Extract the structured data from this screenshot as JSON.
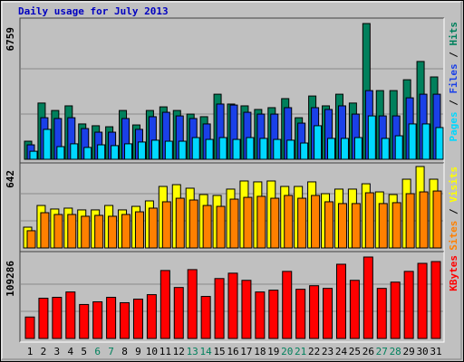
{
  "chart_data": [
    {
      "type": "bar",
      "title": "Daily usage for July 2013",
      "legend_separator": "/",
      "ylim": [
        0,
        6759
      ],
      "yticks": [
        6759
      ],
      "series": [
        {
          "name": "Hits",
          "color": "#00805c",
          "values": [
            900,
            2800,
            2430,
            2660,
            1760,
            1670,
            1620,
            2430,
            1710,
            2430,
            2610,
            2430,
            2250,
            2120,
            3240,
            2750,
            2660,
            2480,
            2570,
            3020,
            2070,
            3150,
            2660,
            3240,
            2800,
            6759,
            3420,
            3420,
            3960,
            4870,
            4100
          ]
        },
        {
          "name": "Files",
          "color": "#1a40e8",
          "values": [
            720,
            2070,
            2030,
            2070,
            1530,
            1350,
            1350,
            2030,
            1490,
            2120,
            2340,
            2160,
            2030,
            1760,
            2750,
            2700,
            2340,
            2250,
            2250,
            2570,
            1800,
            2570,
            2480,
            2660,
            2250,
            3420,
            2160,
            2160,
            3060,
            3240,
            3240
          ]
        },
        {
          "name": "Pages",
          "color": "#00d8ff",
          "values": [
            400,
            1490,
            630,
            770,
            590,
            720,
            680,
            770,
            860,
            950,
            900,
            900,
            1080,
            990,
            1080,
            990,
            1080,
            1040,
            990,
            950,
            810,
            1670,
            1040,
            1040,
            1080,
            2160,
            1040,
            1170,
            1760,
            1760,
            1580
          ]
        }
      ]
    },
    {
      "type": "bar",
      "ylim": [
        0,
        642
      ],
      "yticks": [
        642
      ],
      "series": [
        {
          "name": "Visits",
          "color": "#ffff00",
          "values": [
            164,
            335,
            307,
            314,
            300,
            300,
            335,
            300,
            328,
            371,
            485,
            499,
            471,
            421,
            414,
            464,
            528,
            521,
            528,
            485,
            485,
            521,
            428,
            464,
            464,
            506,
            442,
            421,
            542,
            642,
            542
          ]
        },
        {
          "name": "Sites",
          "color": "#ff8000",
          "values": [
            136,
            278,
            264,
            264,
            250,
            257,
            250,
            264,
            285,
            314,
            364,
            392,
            378,
            335,
            328,
            385,
            399,
            407,
            392,
            414,
            392,
            414,
            364,
            350,
            350,
            435,
            350,
            357,
            428,
            442,
            449
          ]
        }
      ]
    },
    {
      "type": "bar",
      "ylim": [
        0,
        109286
      ],
      "yticks": [
        109286
      ],
      "categories": [
        "1",
        "2",
        "3",
        "4",
        "5",
        "6",
        "7",
        "8",
        "9",
        "10",
        "11",
        "12",
        "13",
        "14",
        "15",
        "16",
        "17",
        "18",
        "19",
        "20",
        "21",
        "22",
        "23",
        "24",
        "25",
        "26",
        "27",
        "28",
        "29",
        "30",
        "31"
      ],
      "label_colors": [
        "#000000",
        "#000000",
        "#000000",
        "#000000",
        "#000000",
        "#00805c",
        "#00805c",
        "#000000",
        "#000000",
        "#000000",
        "#000000",
        "#000000",
        "#00805c",
        "#00805c",
        "#000000",
        "#000000",
        "#000000",
        "#000000",
        "#000000",
        "#00805c",
        "#00805c",
        "#000000",
        "#000000",
        "#000000",
        "#000000",
        "#000000",
        "#00805c",
        "#00805c",
        "#000000",
        "#000000",
        "#000000"
      ],
      "series": [
        {
          "name": "KBytes",
          "color": "#ff0000",
          "values": [
            28800,
            54000,
            55200,
            62400,
            45600,
            49200,
            55200,
            48000,
            52800,
            58800,
            91200,
            68400,
            92400,
            56400,
            80400,
            87600,
            78000,
            62400,
            64800,
            90000,
            66000,
            70800,
            67200,
            99600,
            78000,
            109286,
            67200,
            75600,
            90000,
            100800,
            103200
          ]
        }
      ]
    }
  ]
}
